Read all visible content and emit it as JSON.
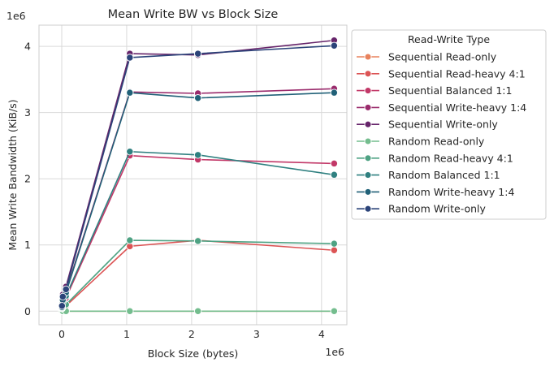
{
  "chart_data": {
    "type": "line",
    "title": "Mean Write BW vs Block Size",
    "xlabel": "Block Size (bytes)",
    "ylabel": "Mean Write Bandwidth (KiB/s)",
    "x_offset_text": "1e6",
    "y_offset_text": "1e6",
    "xlim": [
      -350000,
      4390000
    ],
    "ylim": [
      -205000,
      4320000
    ],
    "x_ticks": [
      0,
      1000000,
      2000000,
      3000000,
      4000000
    ],
    "x_tick_labels": [
      "0",
      "1",
      "2",
      "3",
      "4"
    ],
    "y_ticks": [
      0,
      1000000,
      2000000,
      3000000,
      4000000
    ],
    "y_tick_labels": [
      "0",
      "1",
      "2",
      "3",
      "4"
    ],
    "grid": true,
    "legend": {
      "title": "Read-Write Type",
      "placement": "outside-right"
    },
    "x": [
      4096,
      16384,
      65536,
      1048576,
      2097152,
      4194304
    ],
    "series": [
      {
        "name": "Sequential Read-only",
        "color": "#e8825d",
        "values": [
          0,
          0,
          0,
          0,
          0,
          0
        ]
      },
      {
        "name": "Sequential Read-heavy 4:1",
        "color": "#dc5455",
        "values": [
          30000,
          50000,
          80000,
          980000,
          1070000,
          920000
        ]
      },
      {
        "name": "Sequential Balanced 1:1",
        "color": "#c23868",
        "values": [
          50000,
          120000,
          200000,
          2350000,
          2290000,
          2230000
        ]
      },
      {
        "name": "Sequential Write-heavy 1:4",
        "color": "#9a2b6c",
        "values": [
          60000,
          180000,
          300000,
          3310000,
          3290000,
          3360000
        ]
      },
      {
        "name": "Sequential Write-only",
        "color": "#66246a",
        "values": [
          90000,
          250000,
          370000,
          3890000,
          3870000,
          4090000
        ]
      },
      {
        "name": "Random Read-only",
        "color": "#74bd8e",
        "values": [
          0,
          0,
          0,
          0,
          0,
          0
        ]
      },
      {
        "name": "Random Read-heavy 4:1",
        "color": "#4ea283",
        "values": [
          40000,
          60000,
          100000,
          1070000,
          1060000,
          1020000
        ]
      },
      {
        "name": "Random Balanced 1:1",
        "color": "#2f8080",
        "values": [
          50000,
          140000,
          230000,
          2410000,
          2360000,
          2060000
        ]
      },
      {
        "name": "Random Write-heavy 1:4",
        "color": "#216178",
        "values": [
          60000,
          170000,
          280000,
          3300000,
          3220000,
          3300000
        ]
      },
      {
        "name": "Random Write-only",
        "color": "#2b4379",
        "values": [
          80000,
          220000,
          330000,
          3830000,
          3890000,
          4010000
        ]
      }
    ]
  }
}
